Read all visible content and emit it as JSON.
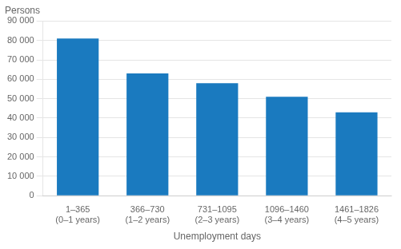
{
  "chart_data": {
    "type": "bar",
    "ylabel": "Persons",
    "xlabel": "Unemployment days",
    "categories": [
      "1–365\n(0–1 years)",
      "366–730\n(1–2 years)",
      "731–1095\n(2–3 years)",
      "1096–1460\n(3–4 years)",
      "1461–1826\n(4–5 years)"
    ],
    "values": [
      81000,
      63000,
      58000,
      51000,
      43000
    ],
    "color": "#1a7abf",
    "ylim": [
      0,
      90000
    ],
    "yticks": [
      0,
      {
        "value": 10000,
        "label": "10 000"
      },
      {
        "value": 20000,
        "label": "20 000"
      },
      {
        "value": 30000,
        "label": "30 000"
      },
      {
        "value": 40000,
        "label": "40 000"
      },
      {
        "value": 50000,
        "label": "50 000"
      },
      {
        "value": 60000,
        "label": "60 000"
      },
      {
        "value": 70000,
        "label": "70 000"
      },
      {
        "value": 80000,
        "label": "80 000"
      },
      {
        "value": 90000,
        "label": "90 000"
      }
    ],
    "grid": true
  }
}
